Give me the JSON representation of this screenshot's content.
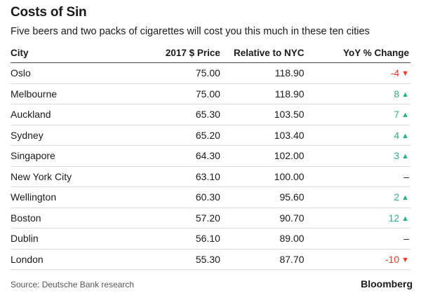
{
  "chart_data": {
    "type": "table",
    "title": "Costs of Sin",
    "subtitle": "Five beers and two packs of cigarettes will cost you this much in these ten cities",
    "columns": [
      "City",
      "2017 $ Price",
      "Relative to NYC",
      "YoY % Change"
    ],
    "rows": [
      {
        "city": "Oslo",
        "price": "75.00",
        "relative": "118.90",
        "yoy": "-4",
        "trend": "down"
      },
      {
        "city": "Melbourne",
        "price": "75.00",
        "relative": "118.90",
        "yoy": "8",
        "trend": "up"
      },
      {
        "city": "Auckland",
        "price": "65.30",
        "relative": "103.50",
        "yoy": "7",
        "trend": "up"
      },
      {
        "city": "Sydney",
        "price": "65.20",
        "relative": "103.40",
        "yoy": "4",
        "trend": "up"
      },
      {
        "city": "Singapore",
        "price": "64.30",
        "relative": "102.00",
        "yoy": "3",
        "trend": "up"
      },
      {
        "city": "New York City",
        "price": "63.10",
        "relative": "100.00",
        "yoy": "–",
        "trend": "flat"
      },
      {
        "city": "Wellington",
        "price": "60.30",
        "relative": "95.60",
        "yoy": "2",
        "trend": "up"
      },
      {
        "city": "Boston",
        "price": "57.20",
        "relative": "90.70",
        "yoy": "12",
        "trend": "up"
      },
      {
        "city": "Dublin",
        "price": "56.10",
        "relative": "89.00",
        "yoy": "–",
        "trend": "flat"
      },
      {
        "city": "London",
        "price": "55.30",
        "relative": "87.70",
        "yoy": "-10",
        "trend": "down"
      }
    ],
    "colors": {
      "up": "#2db27d",
      "down": "#f0392b"
    }
  },
  "footer": {
    "source": "Source: Deutsche Bank research",
    "brand": "Bloomberg"
  }
}
